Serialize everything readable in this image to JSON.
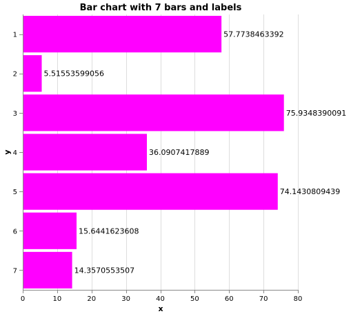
{
  "chart_data": {
    "type": "bar",
    "orientation": "horizontal",
    "title": "Bar chart with 7 bars and labels",
    "xlabel": "x",
    "ylabel": "y",
    "categories": [
      "1",
      "2",
      "3",
      "4",
      "5",
      "6",
      "7"
    ],
    "values": [
      57.7738463392,
      5.51553599056,
      75.9348390091,
      36.0907417889,
      74.1430809439,
      15.6441623608,
      14.3570553507
    ],
    "labels": [
      "57.7738463392",
      "5.51553599056",
      "75.9348390091",
      "36.0907417889",
      "74.1430809439",
      "15.6441623608",
      "14.3570553507"
    ],
    "xlim": [
      0,
      80
    ],
    "xticks": [
      0,
      10,
      20,
      30,
      40,
      50,
      60,
      70,
      80
    ],
    "grid": true,
    "bar_color": "#ff00ff"
  }
}
